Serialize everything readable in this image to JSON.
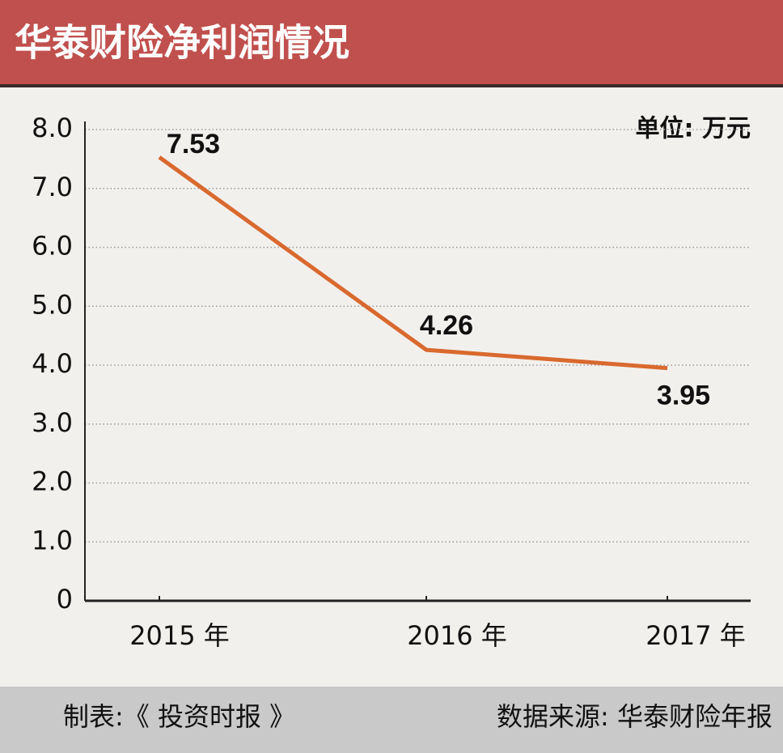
{
  "chart_data": {
    "type": "line",
    "title": "华泰财险净利润情况",
    "unit": "单位: 万元",
    "categories": [
      "2015 年",
      "2016 年",
      "2017 年"
    ],
    "series": [
      {
        "name": "净利润",
        "color": "#d9692e",
        "values": [
          7.53,
          4.26,
          3.95
        ]
      }
    ],
    "ylim": [
      0,
      8
    ],
    "yticks": [
      0,
      {
        "value": 1,
        "label": "1.0"
      },
      {
        "value": 2,
        "label": "2.0"
      },
      {
        "value": 3,
        "label": "3.0"
      },
      {
        "value": 4,
        "label": "4.0"
      },
      {
        "value": 5,
        "label": "5.0"
      },
      {
        "value": 6,
        "label": "6.0"
      },
      {
        "value": 7,
        "label": "7.0"
      },
      {
        "value": 8,
        "label": "8.0"
      }
    ],
    "grid": true,
    "credit": "制表:《 投资时报 》",
    "source": "数据来源: 华泰财险年报"
  }
}
